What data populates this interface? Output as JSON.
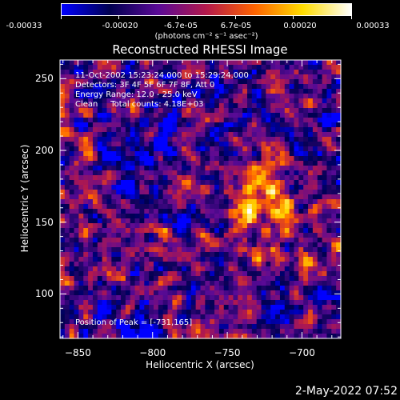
{
  "colorbar": {
    "tick_labels": [
      "-0.00033",
      "-0.00020",
      "-6.7e-05",
      "6.7e-05",
      "0.00020",
      "0.00033"
    ],
    "tick_values": [
      -0.00033,
      -0.0002,
      -6.7e-05,
      6.7e-05,
      0.0002,
      0.00033
    ],
    "range": [
      -0.00033,
      0.00033
    ],
    "units": "(photons cm⁻² s⁻¹ asec⁻²)",
    "colors": [
      "#0000ff",
      "#000050",
      "#5a0a96",
      "#b4194b",
      "#ff6400",
      "#ffdc00",
      "#ffffff"
    ]
  },
  "chart_data": {
    "type": "heatmap",
    "title": "Reconstructed RHESSI Image",
    "xlabel": "Heliocentric X (arcsec)",
    "ylabel": "Heliocentric Y (arcsec)",
    "x_ticks": [
      -850,
      -800,
      -750,
      -700
    ],
    "y_ticks": [
      100,
      150,
      200,
      250
    ],
    "xlim": [
      -862,
      -674
    ],
    "ylim": [
      69,
      263
    ],
    "peak": [
      -731,
      165
    ],
    "annotations": [
      "11-Oct-2002 15:23:24.000 to 15:29:24.000",
      "Detectors: 3F 4F 5F 6F 7F 8F, Att 0",
      "Energy Range: 12.0 - 25.0 keV",
      "Clean     Total counts: 4.18E+03"
    ],
    "peak_label": "Position of Peak = [-731,165]"
  },
  "timestamp": "2-May-2022 07:52"
}
